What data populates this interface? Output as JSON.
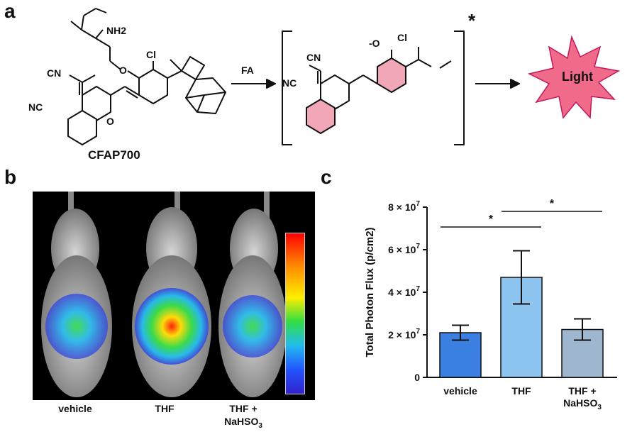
{
  "panels": {
    "a": "a",
    "b": "b",
    "c": "c"
  },
  "scheme": {
    "compound_name": "CFAP700",
    "reagent": "FA",
    "excited_mark": "*",
    "product_label": "Light",
    "atoms": {
      "nh2": "NH2",
      "cl": "Cl",
      "cn": "CN",
      "nc": "NC",
      "o": "O",
      "o_minus": "-O"
    },
    "colors": {
      "ring_highlight": "#f2a7b8",
      "light_burst": "#f06a8a",
      "light_outline": "#c2185b"
    }
  },
  "imaging": {
    "labels": [
      "vehicle",
      "THF",
      "THF +",
      "NaHSO3"
    ],
    "colorbar": [
      "#ff0000",
      "#ff8800",
      "#ffee00",
      "#33dd44",
      "#22bbee",
      "#2255ff",
      "#3322cc"
    ]
  },
  "chart_data": {
    "type": "bar",
    "categories": [
      "vehicle",
      "THF",
      "THF +\nNaHSO3"
    ],
    "values": [
      21000000,
      47000000,
      22500000
    ],
    "errors": [
      3500000,
      12500000,
      5000000
    ],
    "ylabel": "Total Photon Flux (p/cm2)",
    "ylim": [
      0,
      80000000
    ],
    "yticks": [
      "0",
      "2 × 10",
      "4 × 10",
      "6 × 10",
      "8 × 10"
    ],
    "ytick_exp": "7",
    "significance": [
      {
        "pair": [
          0,
          1
        ],
        "mark": "*"
      },
      {
        "pair": [
          1,
          2
        ],
        "mark": "*"
      }
    ],
    "colors": [
      "#3b7fe0",
      "#8dc4f0",
      "#9fb6cf"
    ]
  }
}
